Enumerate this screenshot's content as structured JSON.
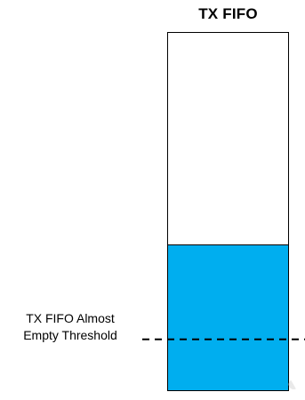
{
  "title": "TX FIFO",
  "fifo": {
    "fill_level": 0.405,
    "fill_color": "#00aeef",
    "threshold_level": 0.14
  },
  "threshold_label": {
    "line1": "TX FIFO Almost",
    "line2": "Empty Threshold"
  }
}
